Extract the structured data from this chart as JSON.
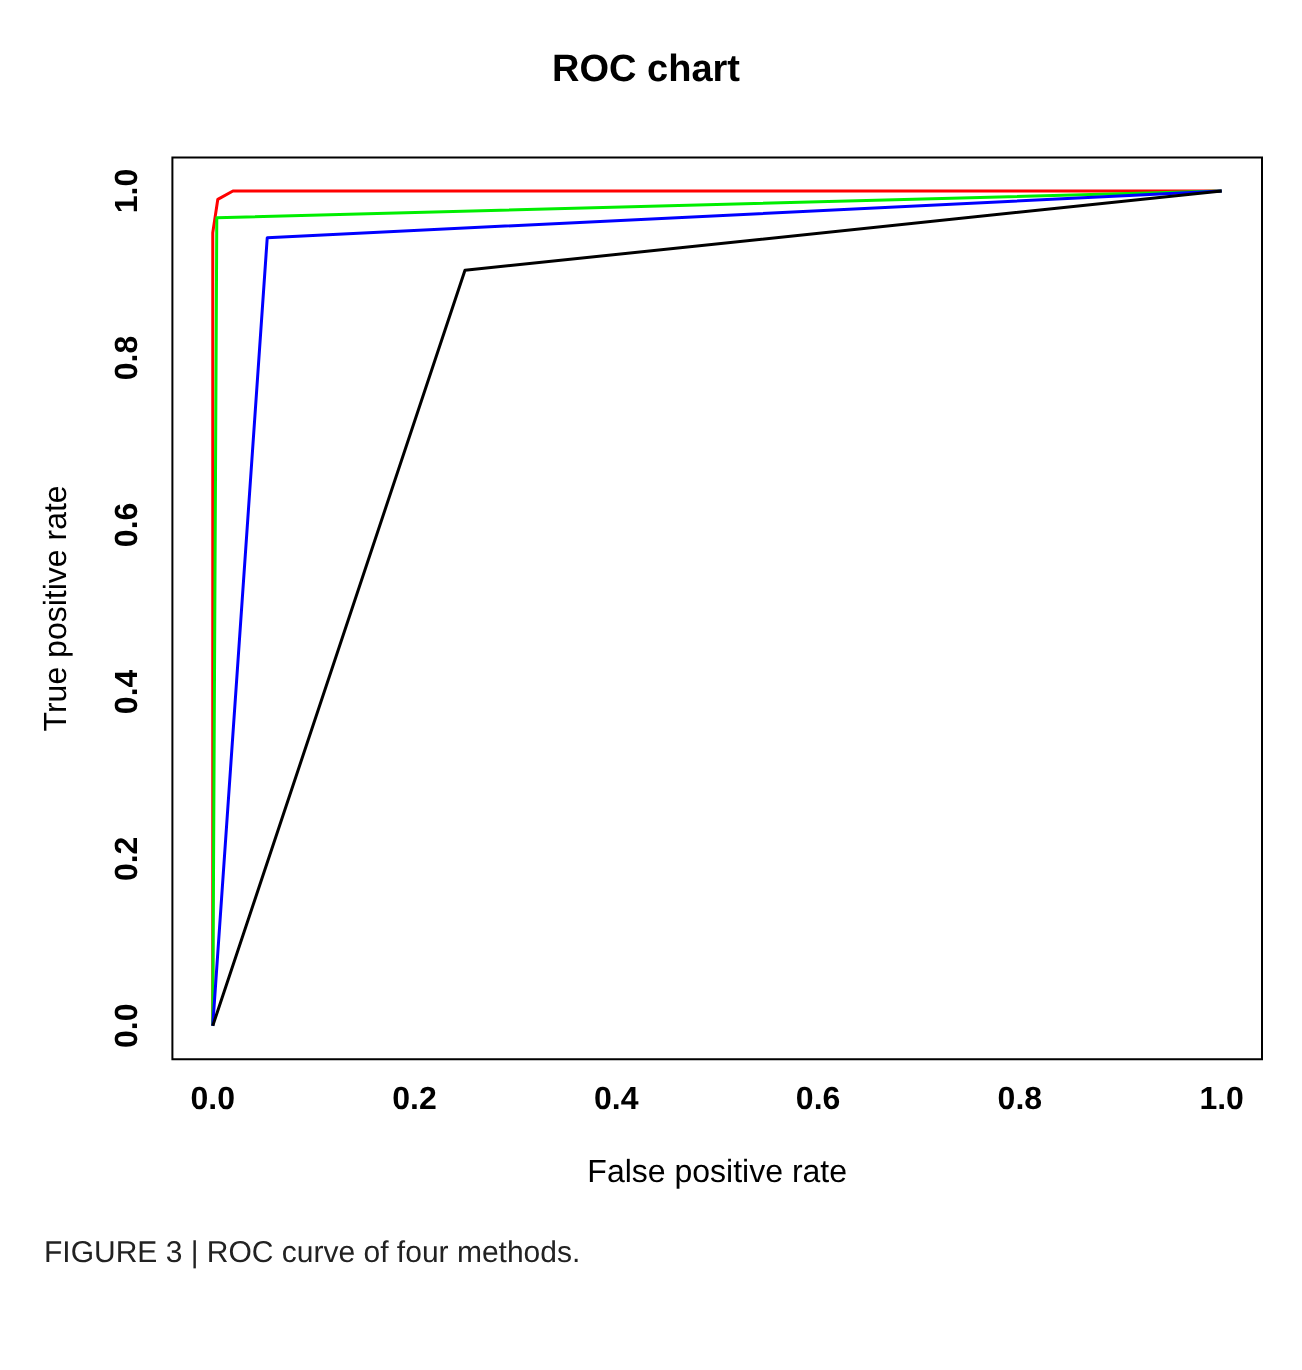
{
  "chart_data": {
    "type": "line",
    "title": "ROC chart",
    "xlabel": "False positive rate",
    "ylabel": "True positive rate",
    "xlim": [
      -0.04,
      1.04
    ],
    "ylim": [
      -0.04,
      1.04
    ],
    "xticks": [
      {
        "value": 0,
        "label": "0.0"
      },
      0.2,
      0.4,
      0.6,
      0.8,
      {
        "value": 1,
        "label": "1.0"
      }
    ],
    "yticks": [
      {
        "value": 0,
        "label": "0.0"
      },
      0.2,
      0.4,
      0.6,
      0.8,
      {
        "value": 1,
        "label": "1.0"
      }
    ],
    "series": [
      {
        "color": "#000000",
        "x": [
          0,
          0.25,
          1
        ],
        "values": [
          0,
          0.905,
          1
        ]
      },
      {
        "color": "#0000ff",
        "x": [
          0,
          0.054,
          1
        ],
        "values": [
          0,
          0.944,
          1
        ]
      },
      {
        "color": "#00ee00",
        "x": [
          0,
          0.004,
          1
        ],
        "values": [
          0,
          0.968,
          1
        ]
      },
      {
        "color": "#ff0000",
        "x": [
          0,
          0,
          0.005,
          0.02,
          1
        ],
        "values": [
          0,
          0.95,
          0.99,
          1,
          1
        ]
      }
    ],
    "grid": false,
    "legend": false,
    "marker": "none",
    "line_style": "solid",
    "annotations": [
      "FIGURE 3 | ROC curve of four methods."
    ]
  }
}
